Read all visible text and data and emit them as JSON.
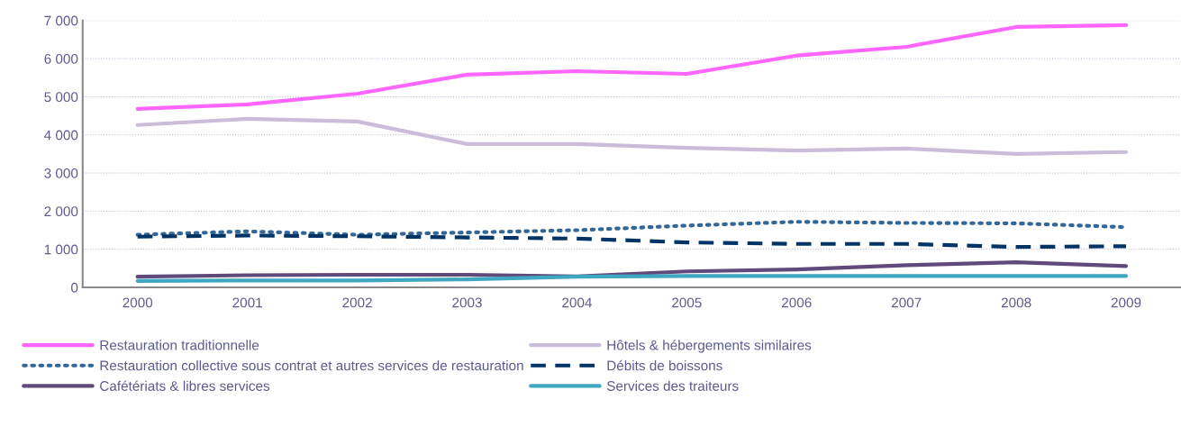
{
  "chart_data": {
    "type": "line",
    "categories": [
      "2000",
      "2001",
      "2002",
      "2003",
      "2004",
      "2005",
      "2006",
      "2007",
      "2008",
      "2009"
    ],
    "series": [
      {
        "name": "Restauration traditionnelle",
        "color": "#ff66ff",
        "line_style": "solid",
        "values": [
          4680,
          4800,
          5080,
          5580,
          5670,
          5600,
          6080,
          6310,
          6830,
          6880
        ]
      },
      {
        "name": "Hôtels & hébergements similaires",
        "color": "#cbbcd9",
        "line_style": "solid",
        "values": [
          4260,
          4420,
          4350,
          3760,
          3760,
          3660,
          3590,
          3640,
          3500,
          3550
        ]
      },
      {
        "name": "Restauration collective sous contrat et autres services de restauration",
        "color": "#336699",
        "line_style": "dotted",
        "values": [
          1380,
          1470,
          1380,
          1440,
          1500,
          1620,
          1720,
          1690,
          1680,
          1580
        ]
      },
      {
        "name": "Débits de boissons",
        "color": "#003366",
        "line_style": "dashed",
        "values": [
          1330,
          1360,
          1340,
          1310,
          1280,
          1180,
          1140,
          1140,
          1060,
          1080
        ]
      },
      {
        "name": "Cafétériats & libres services",
        "color": "#604a7b",
        "line_style": "solid",
        "values": [
          280,
          320,
          330,
          330,
          290,
          420,
          470,
          580,
          660,
          560
        ]
      },
      {
        "name": "Services des traiteurs",
        "color": "#3fa7c1",
        "line_style": "solid",
        "values": [
          170,
          180,
          180,
          210,
          280,
          300,
          300,
          300,
          300,
          300
        ]
      }
    ],
    "ylim": [
      0,
      7000
    ],
    "yticks": [
      {
        "value": 0,
        "label": "0"
      },
      {
        "value": 1000,
        "label": "1 000"
      },
      {
        "value": 2000,
        "label": "2 000"
      },
      {
        "value": 3000,
        "label": "3 000"
      },
      {
        "value": 4000,
        "label": "4 000"
      },
      {
        "value": 5000,
        "label": "5 000"
      },
      {
        "value": 6000,
        "label": "6 000"
      },
      {
        "value": 7000,
        "label": "7 000"
      }
    ],
    "grid": "y",
    "legend": "bottom",
    "marker": "none"
  }
}
